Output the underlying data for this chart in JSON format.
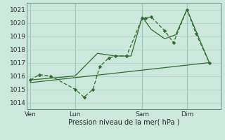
{
  "background_color": "#cce8dc",
  "grid_color": "#aad4c4",
  "line_color": "#2d6e2d",
  "marker_color": "#2d6e2d",
  "xlabel": "Pression niveau de la mer( hPa )",
  "ylim": [
    1013.5,
    1021.5
  ],
  "yticks": [
    1014,
    1015,
    1016,
    1017,
    1018,
    1019,
    1020,
    1021
  ],
  "xtick_labels": [
    "Ven",
    "Lun",
    "Sam",
    "Dim"
  ],
  "xtick_positions": [
    0,
    2,
    5,
    7
  ],
  "vline_positions": [
    0,
    2,
    5,
    7
  ],
  "xlim": [
    -0.15,
    8.5
  ],
  "series": [
    {
      "x": [
        0,
        0.4,
        0.9,
        2.0,
        2.4,
        2.8,
        3.1,
        3.5,
        3.8,
        4.3,
        5.0,
        5.15,
        5.4,
        6.0,
        6.4,
        7.0,
        7.4,
        8.0
      ],
      "y": [
        1015.7,
        1016.1,
        1016.0,
        1015.0,
        1014.4,
        1015.0,
        1016.7,
        1017.35,
        1017.5,
        1017.5,
        1020.35,
        1020.35,
        1020.45,
        1019.4,
        1018.5,
        1021.0,
        1019.2,
        1017.0
      ],
      "with_markers": true
    },
    {
      "x": [
        0,
        2.0,
        3.0,
        3.8,
        4.5,
        5.0,
        5.4,
        6.0,
        6.5,
        7.0,
        7.5,
        8.0
      ],
      "y": [
        1015.7,
        1016.0,
        1017.7,
        1017.5,
        1017.5,
        1020.45,
        1019.5,
        1018.8,
        1019.1,
        1021.0,
        1019.0,
        1017.0
      ],
      "with_markers": false
    },
    {
      "x": [
        0,
        8.0
      ],
      "y": [
        1015.5,
        1017.0
      ],
      "with_markers": false
    }
  ]
}
